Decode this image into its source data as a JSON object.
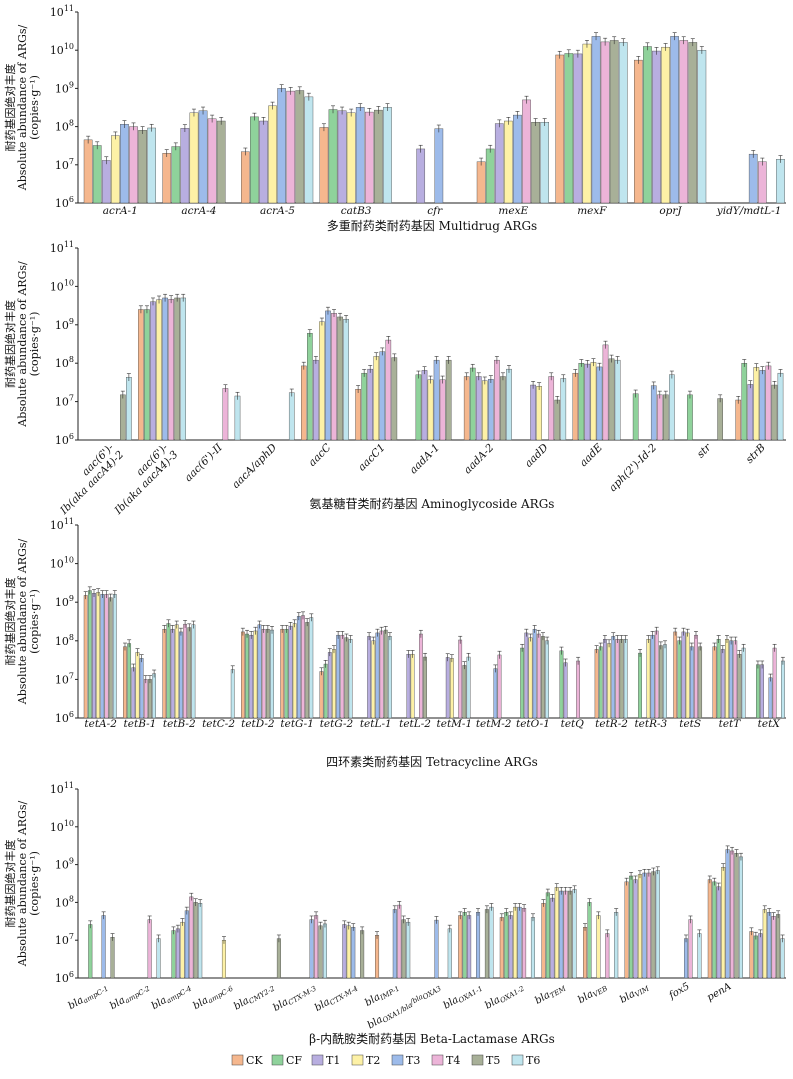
{
  "colors": {
    "CK": "#f5b78e",
    "CF": "#8fd29b",
    "T1": "#b8aee0",
    "T2": "#fdf1a6",
    "T3": "#9dbbea",
    "T4": "#ecb4d8",
    "T5": "#a8b098",
    "T6": "#bfe5ee"
  },
  "legend": [
    "CK",
    "CF",
    "T1",
    "T2",
    "T3",
    "T4",
    "T5",
    "T6"
  ],
  "y_axis_title_cn": "耐药基因绝对丰度",
  "y_axis_title_en": "Absolute abundance of ARGs/",
  "y_axis_unit": "(copies·g⁻¹)",
  "chart_data": [
    {
      "type": "bar",
      "yscale": "log",
      "ylim": [
        1000000.0,
        100000000000.0
      ],
      "title": "多重耐药类耐药基因 Multidrug ARGs",
      "series_names": [
        "CK",
        "CF",
        "T1",
        "T2",
        "T3",
        "T4",
        "T5",
        "T6"
      ],
      "categories": [
        {
          "label": "acrA-1",
          "values": [
            45000000.0,
            32000000.0,
            13000000.0,
            58000000.0,
            115000000.0,
            100000000.0,
            80000000.0,
            92000000.0
          ]
        },
        {
          "label": "acrA-4",
          "values": [
            20000000.0,
            30000000.0,
            90000000.0,
            230000000.0,
            260000000.0,
            160000000.0,
            140000000.0,
            null
          ]
        },
        {
          "label": "acrA-5",
          "values": [
            22000000.0,
            180000000.0,
            140000000.0,
            350000000.0,
            1000000000.0,
            850000000.0,
            880000000.0,
            600000000.0
          ]
        },
        {
          "label": "catB3",
          "values": [
            95000000.0,
            280000000.0,
            260000000.0,
            230000000.0,
            320000000.0,
            240000000.0,
            270000000.0,
            320000000.0
          ]
        },
        {
          "label": "cfr",
          "values": [
            null,
            null,
            26000000.0,
            null,
            88000000.0,
            null,
            null,
            null
          ]
        },
        {
          "label": "mexE",
          "values": [
            12000000.0,
            26000000.0,
            120000000.0,
            140000000.0,
            200000000.0,
            500000000.0,
            130000000.0,
            130000000.0
          ]
        },
        {
          "label": "mexF",
          "values": [
            7500000000.0,
            8200000000.0,
            8000000000.0,
            14500000000.0,
            23000000000.0,
            16500000000.0,
            18000000000.0,
            16000000000.0
          ]
        },
        {
          "label": "oprJ",
          "values": [
            5500000000.0,
            12500000000.0,
            9500000000.0,
            12000000000.0,
            23000000000.0,
            18000000000.0,
            16000000000.0,
            10000000000.0
          ]
        },
        {
          "label": "yidY/mdtL-1",
          "values": [
            null,
            null,
            null,
            null,
            19000000.0,
            12000000.0,
            null,
            14000000.0
          ]
        }
      ]
    },
    {
      "type": "bar",
      "yscale": "log",
      "ylim": [
        1000000.0,
        100000000000.0
      ],
      "title": "氨基糖苷类耐药基因 Aminoglycoside ARGs",
      "series_names": [
        "CK",
        "CF",
        "T1",
        "T2",
        "T3",
        "T4",
        "T5",
        "T6"
      ],
      "categories": [
        {
          "label1": "aac(6')-",
          "label2": "Ib(aka aacA4)-2",
          "values": [
            null,
            null,
            null,
            null,
            null,
            null,
            15000000.0,
            43000000.0
          ]
        },
        {
          "label1": "aac(6')-",
          "label2": "Ib(aka aacA4)-3",
          "values": [
            2500000000.0,
            2500000000.0,
            4000000000.0,
            4500000000.0,
            5000000000.0,
            4600000000.0,
            5000000000.0,
            5000000000.0
          ]
        },
        {
          "label1": "aac(6')-II",
          "label2": "",
          "values": [
            null,
            null,
            null,
            null,
            null,
            22000000.0,
            null,
            14000000.0
          ]
        },
        {
          "label1": "aacA/aphD",
          "label2": "",
          "values": [
            null,
            null,
            null,
            null,
            null,
            null,
            null,
            17000000.0
          ]
        },
        {
          "label1": "aacC",
          "label2": "",
          "values": [
            85000000.0,
            600000000.0,
            120000000.0,
            1200000000.0,
            2300000000.0,
            2000000000.0,
            1600000000.0,
            1400000000.0
          ]
        },
        {
          "label1": "aacC1",
          "label2": "",
          "values": [
            21000000.0,
            55000000.0,
            70000000.0,
            150000000.0,
            200000000.0,
            400000000.0,
            140000000.0,
            null
          ]
        },
        {
          "label1": "aadA-1",
          "label2": "",
          "values": [
            null,
            50000000.0,
            65000000.0,
            37000000.0,
            120000000.0,
            37000000.0,
            120000000.0,
            null
          ]
        },
        {
          "label1": "aadA-2",
          "label2": "",
          "values": [
            45000000.0,
            75000000.0,
            45000000.0,
            35000000.0,
            38000000.0,
            120000000.0,
            45000000.0,
            70000000.0
          ]
        },
        {
          "label1": "aadD",
          "label2": "",
          "values": [
            null,
            null,
            27000000.0,
            25000000.0,
            null,
            45000000.0,
            11000000.0,
            40000000.0
          ]
        },
        {
          "label1": "aadE",
          "label2": "",
          "values": [
            55000000.0,
            100000000.0,
            95000000.0,
            105000000.0,
            80000000.0,
            300000000.0,
            130000000.0,
            120000000.0
          ]
        },
        {
          "label1": "aph(2')-Id-2",
          "label2": "",
          "values": [
            null,
            16000000.0,
            null,
            null,
            26000000.0,
            15000000.0,
            15000000.0,
            50000000.0
          ]
        },
        {
          "label1": "str",
          "label2": "",
          "values": [
            null,
            15000000.0,
            null,
            null,
            null,
            null,
            12000000.0,
            null
          ]
        },
        {
          "label1": "strB",
          "label2": "",
          "values": [
            11000000.0,
            100000000.0,
            28000000.0,
            78000000.0,
            65000000.0,
            85000000.0,
            27000000.0,
            55000000.0
          ]
        }
      ]
    },
    {
      "type": "bar",
      "yscale": "log",
      "ylim": [
        1000000.0,
        100000000000.0
      ],
      "title": "四环素类耐药基因 Tetracycline ARGs",
      "series_names": [
        "CK",
        "CF",
        "T1",
        "T2",
        "T3",
        "T4",
        "T5",
        "T6"
      ],
      "categories": [
        {
          "label": "tetA-2",
          "values": [
            1500000000.0,
            2000000000.0,
            1700000000.0,
            1800000000.0,
            1600000000.0,
            1600000000.0,
            1300000000.0,
            1600000000.0
          ]
        },
        {
          "label": "tetB-1",
          "values": [
            70000000.0,
            85000000.0,
            20000000.0,
            50000000.0,
            35000000.0,
            10000000.0,
            10000000.0,
            14000000.0
          ]
        },
        {
          "label": "tetB-2",
          "values": [
            200000000.0,
            280000000.0,
            200000000.0,
            260000000.0,
            170000000.0,
            270000000.0,
            220000000.0,
            260000000.0
          ]
        },
        {
          "label": "tetC-2",
          "values": [
            null,
            null,
            null,
            null,
            null,
            null,
            null,
            18000000.0
          ]
        },
        {
          "label": "tetD-2",
          "values": [
            170000000.0,
            150000000.0,
            140000000.0,
            180000000.0,
            260000000.0,
            200000000.0,
            200000000.0,
            190000000.0
          ]
        },
        {
          "label": "tetG-1",
          "values": [
            200000000.0,
            200000000.0,
            240000000.0,
            280000000.0,
            430000000.0,
            450000000.0,
            300000000.0,
            400000000.0
          ]
        },
        {
          "label": "tetG-2",
          "values": [
            16000000.0,
            25000000.0,
            50000000.0,
            60000000.0,
            140000000.0,
            140000000.0,
            120000000.0,
            110000000.0
          ]
        },
        {
          "label": "tetL-1",
          "values": [
            null,
            null,
            130000000.0,
            100000000.0,
            160000000.0,
            180000000.0,
            190000000.0,
            130000000.0
          ]
        },
        {
          "label": "tetL-2",
          "values": [
            null,
            null,
            45000000.0,
            45000000.0,
            null,
            150000000.0,
            38000000.0,
            null
          ]
        },
        {
          "label": "tetM-1",
          "values": [
            null,
            null,
            37000000.0,
            35000000.0,
            null,
            105000000.0,
            23000000.0,
            38000000.0
          ]
        },
        {
          "label": "tetM-2",
          "values": [
            null,
            null,
            null,
            null,
            19000000.0,
            43000000.0,
            null,
            null
          ]
        },
        {
          "label": "tetO-1",
          "values": [
            null,
            65000000.0,
            160000000.0,
            120000000.0,
            200000000.0,
            150000000.0,
            130000000.0,
            100000000.0
          ]
        },
        {
          "label": "tetQ",
          "values": [
            null,
            55000000.0,
            27000000.0,
            null,
            null,
            30000000.0,
            null,
            null
          ]
        },
        {
          "label": "tetR-2",
          "values": [
            60000000.0,
            70000000.0,
            110000000.0,
            85000000.0,
            130000000.0,
            110000000.0,
            110000000.0,
            110000000.0
          ]
        },
        {
          "label": "tetR-3",
          "values": [
            null,
            48000000.0,
            null,
            110000000.0,
            140000000.0,
            180000000.0,
            75000000.0,
            80000000.0
          ]
        },
        {
          "label": "tetS",
          "values": [
            170000000.0,
            100000000.0,
            170000000.0,
            160000000.0,
            70000000.0,
            140000000.0,
            70000000.0,
            null
          ]
        },
        {
          "label": "tetT",
          "values": [
            70000000.0,
            110000000.0,
            60000000.0,
            110000000.0,
            100000000.0,
            100000000.0,
            45000000.0,
            65000000.0
          ]
        },
        {
          "label": "tetX",
          "values": [
            null,
            24000000.0,
            24000000.0,
            null,
            11000000.0,
            65000000.0,
            null,
            30000000.0
          ]
        }
      ]
    },
    {
      "type": "bar",
      "yscale": "log",
      "ylim": [
        1000000.0,
        100000000000.0
      ],
      "title": "β-内酰胺类耐药基因 Beta-Lactamase ARGs",
      "series_names": [
        "CK",
        "CF",
        "T1",
        "T2",
        "T3",
        "T4",
        "T5",
        "T6"
      ],
      "categories": [
        {
          "label": "bla",
          "sub": "ampC-1",
          "values": [
            null,
            26000000.0,
            null,
            null,
            45000000.0,
            null,
            12000000.0,
            null
          ]
        },
        {
          "label": "bla",
          "sub": "ampC-2",
          "values": [
            null,
            null,
            null,
            null,
            null,
            35000000.0,
            null,
            11000000.0
          ]
        },
        {
          "label": "bla",
          "sub": "ampC-4",
          "values": [
            null,
            18000000.0,
            20000000.0,
            30000000.0,
            60000000.0,
            140000000.0,
            100000000.0,
            95000000.0
          ]
        },
        {
          "label": "bla",
          "sub": "ampC-6",
          "values": [
            null,
            null,
            null,
            10000000.0,
            null,
            null,
            null,
            null
          ]
        },
        {
          "label": "bla",
          "sub": "CMY2-2",
          "values": [
            null,
            null,
            null,
            null,
            null,
            null,
            11000000.0,
            null
          ]
        },
        {
          "label": "bla",
          "sub": "CTX-M-3",
          "values": [
            null,
            null,
            null,
            null,
            35000000.0,
            45000000.0,
            24000000.0,
            27000000.0
          ]
        },
        {
          "label": "bla",
          "sub": "CTX-M-4",
          "values": [
            null,
            null,
            26000000.0,
            24000000.0,
            22000000.0,
            null,
            18000000.0,
            null
          ]
        },
        {
          "label": "bla",
          "sub": "IMP-1",
          "values": [
            13500000.0,
            null,
            null,
            null,
            65000000.0,
            85000000.0,
            35000000.0,
            30000000.0
          ]
        },
        {
          "label": "bla",
          "sub": "OXA1/bla",
          "sub2": "OXA3",
          "values": [
            null,
            null,
            null,
            null,
            34000000.0,
            null,
            null,
            20000000.0
          ]
        },
        {
          "label": "bla",
          "sub": "OXA1-1",
          "values": [
            45000000.0,
            55000000.0,
            45000000.0,
            null,
            55000000.0,
            null,
            65000000.0,
            75000000.0
          ]
        },
        {
          "label": "bla",
          "sub": "OXA1-2",
          "values": [
            40000000.0,
            55000000.0,
            45000000.0,
            75000000.0,
            75000000.0,
            70000000.0,
            null,
            40000000.0
          ]
        },
        {
          "label": "bla",
          "sub": "TEM",
          "values": [
            95000000.0,
            180000000.0,
            130000000.0,
            250000000.0,
            200000000.0,
            200000000.0,
            200000000.0,
            220000000.0
          ]
        },
        {
          "label": "bla",
          "sub": "VEB",
          "values": [
            22000000.0,
            100000000.0,
            null,
            45000000.0,
            null,
            15000000.0,
            null,
            55000000.0
          ]
        },
        {
          "label": "bla",
          "sub": "VIM",
          "values": [
            350000000.0,
            500000000.0,
            400000000.0,
            550000000.0,
            600000000.0,
            600000000.0,
            650000000.0,
            700000000.0
          ]
        },
        {
          "label": "fox5",
          "values": [
            null,
            null,
            null,
            null,
            11000000.0,
            35000000.0,
            null,
            15000000.0
          ]
        },
        {
          "label": "penA",
          "values": [
            400000000.0,
            350000000.0,
            260000000.0,
            850000000.0,
            2500000000.0,
            2300000000.0,
            2000000000.0,
            1600000000.0
          ]
        },
        {
          "label": "",
          "values": [
            17000000.0,
            13000000.0,
            15000000.0,
            65000000.0,
            55000000.0,
            43000000.0,
            48000000.0,
            11000000.0
          ]
        }
      ]
    }
  ]
}
